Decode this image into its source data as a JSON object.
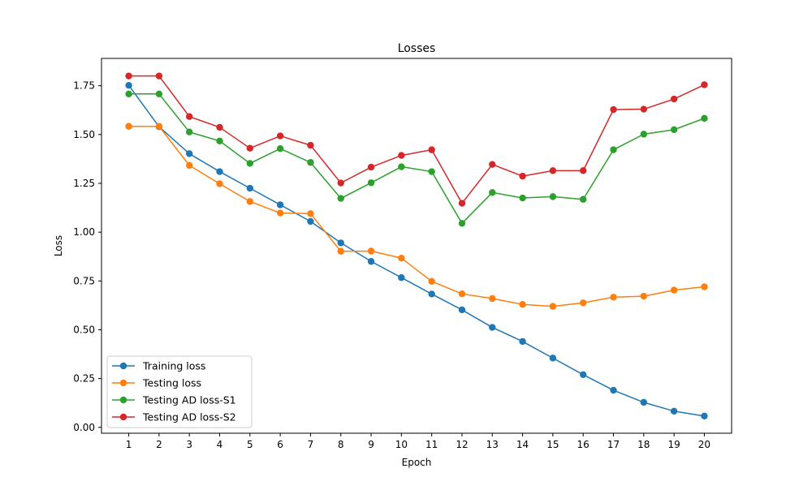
{
  "chart_data": {
    "type": "line",
    "title": "Losses",
    "xlabel": "Epoch",
    "ylabel": "Loss",
    "x": [
      1,
      2,
      3,
      4,
      5,
      6,
      7,
      8,
      9,
      10,
      11,
      12,
      13,
      14,
      15,
      16,
      17,
      18,
      19,
      20
    ],
    "xlim": [
      0.1,
      20.9
    ],
    "ylim": [
      -0.03,
      1.89
    ],
    "yticks": [
      0.0,
      0.25,
      0.5,
      0.75,
      1.0,
      1.25,
      1.5,
      1.75
    ],
    "ytick_labels": [
      "0.00",
      "0.25",
      "0.50",
      "0.75",
      "1.00",
      "1.25",
      "1.50",
      "1.75"
    ],
    "grid": false,
    "legend": "lower-left",
    "series": [
      {
        "name": "Training loss",
        "color": "#1f77b4",
        "values": [
          1.752,
          1.54,
          1.402,
          1.31,
          1.225,
          1.14,
          1.055,
          0.945,
          0.85,
          0.767,
          0.683,
          0.602,
          0.512,
          0.44,
          0.355,
          0.27,
          0.19,
          0.128,
          0.083,
          0.058
        ]
      },
      {
        "name": "Testing loss",
        "color": "#ff7f0e",
        "values": [
          1.542,
          1.542,
          1.342,
          1.248,
          1.157,
          1.098,
          1.095,
          0.902,
          0.903,
          0.867,
          0.748,
          0.684,
          0.66,
          0.63,
          0.62,
          0.638,
          0.667,
          0.672,
          0.703,
          0.72
        ]
      },
      {
        "name": "Testing AD loss-S1",
        "color": "#2ca02c",
        "values": [
          1.708,
          1.708,
          1.513,
          1.467,
          1.352,
          1.428,
          1.357,
          1.173,
          1.253,
          1.335,
          1.31,
          1.045,
          1.203,
          1.175,
          1.182,
          1.168,
          1.422,
          1.502,
          1.525,
          1.583
        ]
      },
      {
        "name": "Testing AD loss-S2",
        "color": "#d62728",
        "values": [
          1.8,
          1.8,
          1.592,
          1.537,
          1.43,
          1.493,
          1.445,
          1.252,
          1.333,
          1.393,
          1.422,
          1.148,
          1.347,
          1.287,
          1.315,
          1.315,
          1.628,
          1.63,
          1.682,
          1.755
        ]
      }
    ]
  }
}
